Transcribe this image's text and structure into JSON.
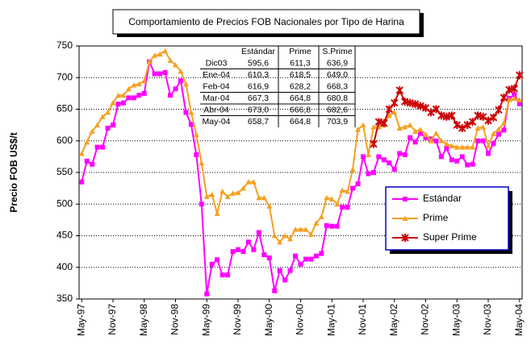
{
  "chart_data": {
    "type": "line",
    "title": "Comportamiento de Precios FOB Nacionales por Tipo de Harina",
    "y_label": "Precio FOB US$/t",
    "categories": [
      "May-97",
      null,
      null,
      null,
      null,
      null,
      "Nov-97",
      null,
      null,
      null,
      null,
      null,
      "May-98",
      null,
      null,
      null,
      null,
      null,
      "Nov-98",
      null,
      null,
      null,
      null,
      null,
      "May-99",
      null,
      null,
      null,
      null,
      null,
      "Nov-99",
      null,
      null,
      null,
      null,
      null,
      "May-00",
      null,
      null,
      null,
      null,
      null,
      "Nov-00",
      null,
      null,
      null,
      null,
      null,
      "May-01",
      null,
      null,
      null,
      null,
      null,
      "Nov-01",
      null,
      null,
      null,
      null,
      null,
      "May-02",
      null,
      null,
      null,
      null,
      null,
      "Nov-02",
      null,
      null,
      null,
      null,
      null,
      "May-03",
      null,
      null,
      null,
      null,
      null,
      "Nov-03",
      null,
      null,
      null,
      null,
      null,
      "May-04"
    ],
    "series": [
      {
        "name": "Estándar",
        "color": "#ff00ff",
        "marker": "square",
        "values": [
          535,
          568,
          563,
          590,
          590,
          620,
          625,
          658,
          660,
          668,
          668,
          672,
          675,
          725,
          706,
          706,
          708,
          672,
          682,
          695,
          645,
          626,
          578,
          500,
          358,
          405,
          412,
          388,
          388,
          425,
          428,
          425,
          440,
          428,
          455,
          420,
          415,
          363,
          395,
          380,
          395,
          418,
          405,
          413,
          413,
          418,
          422,
          466,
          465,
          465,
          495,
          495,
          525,
          532,
          575,
          548,
          550,
          575,
          570,
          565,
          555,
          580,
          578,
          605,
          598,
          612,
          605,
          603,
          600,
          575,
          588,
          570,
          568,
          575,
          562,
          563,
          600,
          600,
          580,
          595.6,
          610.3,
          616.9,
          667.3,
          673.0,
          658.7
        ]
      },
      {
        "name": "Prime",
        "color": "#f5a020",
        "marker": "triangle",
        "values": [
          580,
          598,
          615,
          625,
          638,
          645,
          660,
          672,
          672,
          682,
          688,
          690,
          695,
          725,
          735,
          737,
          742,
          727,
          720,
          710,
          690,
          645,
          610,
          565,
          512,
          515,
          485,
          520,
          512,
          517,
          518,
          525,
          535,
          535,
          510,
          510,
          497,
          450,
          440,
          450,
          445,
          460,
          460,
          460,
          452,
          470,
          480,
          510,
          508,
          500,
          522,
          520,
          555,
          618,
          625,
          578,
          622,
          622,
          625,
          640,
          645,
          620,
          622,
          625,
          615,
          618,
          610,
          600,
          612,
          600,
          595,
          592,
          590,
          590,
          590,
          590,
          620,
          622,
          592,
          611.3,
          618.5,
          628.2,
          664.8,
          666.8,
          664.8
        ]
      },
      {
        "name": "Super Prime",
        "color": "#cc0000",
        "marker": "star",
        "values": [
          null,
          null,
          null,
          null,
          null,
          null,
          null,
          null,
          null,
          null,
          null,
          null,
          null,
          null,
          null,
          null,
          null,
          null,
          null,
          null,
          null,
          null,
          null,
          null,
          null,
          null,
          null,
          null,
          null,
          null,
          null,
          null,
          null,
          null,
          null,
          null,
          null,
          null,
          null,
          null,
          null,
          null,
          null,
          null,
          null,
          null,
          null,
          null,
          null,
          null,
          null,
          null,
          null,
          null,
          null,
          null,
          595,
          630,
          628,
          650,
          660,
          680,
          662,
          660,
          658,
          655,
          652,
          645,
          650,
          640,
          638,
          640,
          625,
          620,
          625,
          630,
          640,
          638,
          632,
          636.9,
          649.0,
          668.3,
          680.8,
          682.6,
          703.9
        ]
      }
    ],
    "ylim": [
      350,
      750
    ],
    "yticks": [
      350,
      400,
      450,
      500,
      550,
      600,
      650,
      700,
      750
    ],
    "grid": true,
    "table": {
      "columns": [
        "Estándar",
        "Prime",
        "S.Prime"
      ],
      "rows": [
        [
          "Dic03",
          "595,6",
          "611,3",
          "636,9"
        ],
        [
          "Ene-04",
          "610,3",
          "618,5",
          "649,0"
        ],
        [
          "Feb-04",
          "616,9",
          "628,2",
          "668,3"
        ],
        [
          "Mar-04",
          "667,3",
          "664,8",
          "680,8"
        ],
        [
          "Abr-04",
          "673,0",
          "666,8",
          "682,6"
        ],
        [
          "May-04",
          "658,7",
          "664,8",
          "703,9"
        ]
      ]
    }
  }
}
